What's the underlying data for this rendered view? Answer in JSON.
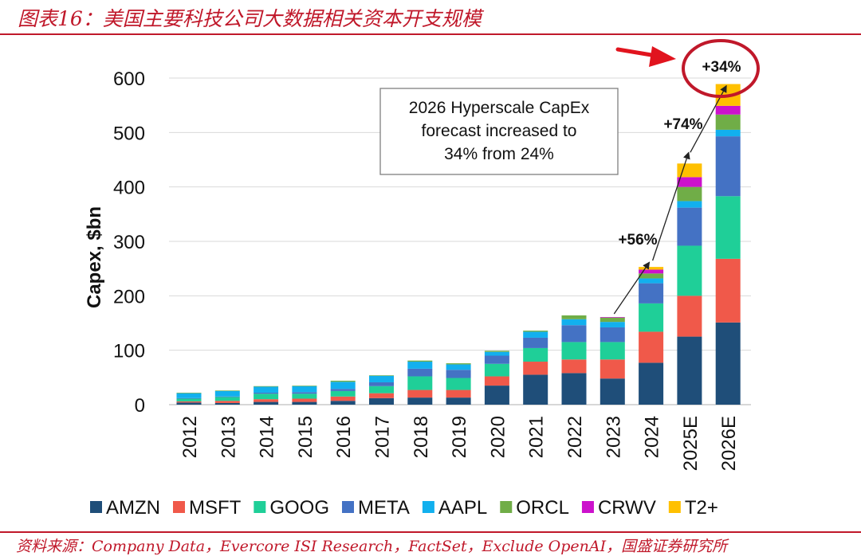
{
  "header": {
    "title": "图表16：美国主要科技公司大数据相关资本开支规模"
  },
  "footer": {
    "source": "资料来源：Company Data，Evercore ISI Research，FactSet，Exclude OpenAI，国盛证券研究所"
  },
  "colors": {
    "AMZN": "#1f4e79",
    "MSFT": "#f0594a",
    "GOOG": "#1fcf98",
    "META": "#4472c4",
    "AAPL": "#12b0ee",
    "ORCL": "#70ad47",
    "CRWV": "#cc11cc",
    "T2+": "#ffc000",
    "accent": "#c0182a"
  },
  "chart_data": {
    "type": "bar",
    "stacked": true,
    "ylabel": "Capex, $bn",
    "ylim": [
      0,
      600
    ],
    "yticks": [
      0,
      100,
      200,
      300,
      400,
      500,
      600
    ],
    "grid": true,
    "legend_position": "bottom",
    "categories": [
      "2012",
      "2013",
      "2014",
      "2015",
      "2016",
      "2017",
      "2018",
      "2019",
      "2020",
      "2021",
      "2022",
      "2023",
      "2024",
      "2025E",
      "2026E"
    ],
    "series": [
      {
        "name": "AMZN",
        "values": [
          4,
          3,
          5,
          5,
          7,
          12,
          13,
          13,
          35,
          55,
          58,
          48,
          77,
          125,
          151
        ]
      },
      {
        "name": "MSFT",
        "values": [
          2,
          4,
          5,
          6,
          8,
          9,
          14,
          14,
          17,
          24,
          25,
          35,
          57,
          75,
          117
        ]
      },
      {
        "name": "GOOG",
        "values": [
          5,
          7,
          10,
          9,
          10,
          13,
          25,
          22,
          23,
          25,
          32,
          32,
          52,
          92,
          115
        ]
      },
      {
        "name": "META",
        "values": [
          1,
          1,
          2,
          3,
          4,
          7,
          14,
          15,
          15,
          19,
          31,
          27,
          37,
          70,
          110
        ]
      },
      {
        "name": "AAPL",
        "values": [
          9,
          10,
          11,
          11,
          13,
          12,
          13,
          10,
          7,
          11,
          11,
          10,
          9,
          12,
          12
        ]
      },
      {
        "name": "ORCL",
        "values": [
          1,
          1,
          1,
          1,
          2,
          1,
          2,
          2,
          2,
          2,
          7,
          8,
          9,
          26,
          28
        ]
      },
      {
        "name": "CRWV",
        "values": [
          0,
          0,
          0,
          0,
          0,
          0,
          0,
          0,
          0,
          0,
          0,
          1,
          7,
          18,
          16
        ]
      },
      {
        "name": "T2+",
        "values": [
          0,
          0,
          0,
          0,
          0,
          0,
          0,
          0,
          0,
          0,
          0,
          0,
          5,
          25,
          40
        ]
      }
    ],
    "annotations": {
      "callout": [
        "2026 Hyperscale CapEx",
        "forecast increased to",
        "34% from 24%"
      ],
      "growth_labels": [
        "+56%",
        "+74%",
        "+34%"
      ]
    }
  }
}
